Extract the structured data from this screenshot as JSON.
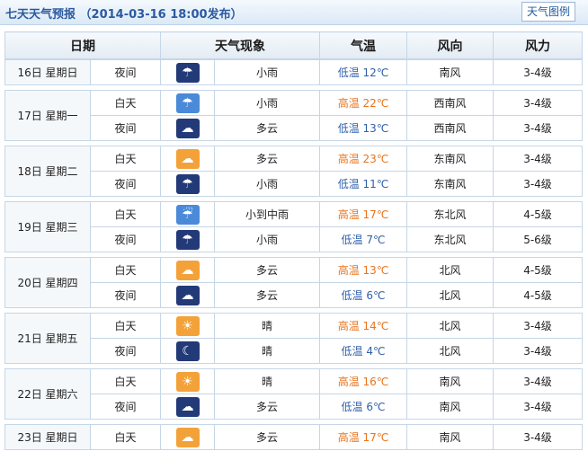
{
  "header": {
    "title": "七天天气预报 （2014-03-16 18:00发布）",
    "legend_button": "天气图例"
  },
  "table_head": [
    "日期",
    "天气现象",
    "气温",
    "风向",
    "风力"
  ],
  "days": [
    {
      "date": "16日 星期日",
      "periods": [
        {
          "period": "夜间",
          "icon": "rain-night-icon",
          "weather": "小雨",
          "temp_label": "低温",
          "temp": "12℃",
          "temp_kind": "low",
          "wind_dir": "南风",
          "wind_force": "3-4级"
        }
      ]
    },
    {
      "date": "17日 星期一",
      "periods": [
        {
          "period": "白天",
          "icon": "rain-day-icon",
          "weather": "小雨",
          "temp_label": "高温",
          "temp": "22℃",
          "temp_kind": "high",
          "wind_dir": "西南风",
          "wind_force": "3-4级"
        },
        {
          "period": "夜间",
          "icon": "cloudy-night-icon",
          "weather": "多云",
          "temp_label": "低温",
          "temp": "13℃",
          "temp_kind": "low",
          "wind_dir": "西南风",
          "wind_force": "3-4级"
        }
      ]
    },
    {
      "date": "18日 星期二",
      "periods": [
        {
          "period": "白天",
          "icon": "cloudy-day-icon",
          "weather": "多云",
          "temp_label": "高温",
          "temp": "23℃",
          "temp_kind": "high",
          "wind_dir": "东南风",
          "wind_force": "3-4级"
        },
        {
          "period": "夜间",
          "icon": "rain-night-icon",
          "weather": "小雨",
          "temp_label": "低温",
          "temp": "11℃",
          "temp_kind": "low",
          "wind_dir": "东南风",
          "wind_force": "3-4级"
        }
      ]
    },
    {
      "date": "19日 星期三",
      "periods": [
        {
          "period": "白天",
          "icon": "moderate-rain-day-icon",
          "weather": "小到中雨",
          "temp_label": "高温",
          "temp": "17℃",
          "temp_kind": "high",
          "wind_dir": "东北风",
          "wind_force": "4-5级"
        },
        {
          "period": "夜间",
          "icon": "rain-night-icon",
          "weather": "小雨",
          "temp_label": "低温",
          "temp": "7℃",
          "temp_kind": "low",
          "wind_dir": "东北风",
          "wind_force": "5-6级"
        }
      ]
    },
    {
      "date": "20日 星期四",
      "periods": [
        {
          "period": "白天",
          "icon": "cloudy-day-icon",
          "weather": "多云",
          "temp_label": "高温",
          "temp": "13℃",
          "temp_kind": "high",
          "wind_dir": "北风",
          "wind_force": "4-5级"
        },
        {
          "period": "夜间",
          "icon": "cloudy-night-icon",
          "weather": "多云",
          "temp_label": "低温",
          "temp": "6℃",
          "temp_kind": "low",
          "wind_dir": "北风",
          "wind_force": "4-5级"
        }
      ]
    },
    {
      "date": "21日 星期五",
      "periods": [
        {
          "period": "白天",
          "icon": "sunny-icon",
          "weather": "晴",
          "temp_label": "高温",
          "temp": "14℃",
          "temp_kind": "high",
          "wind_dir": "北风",
          "wind_force": "3-4级"
        },
        {
          "period": "夜间",
          "icon": "clear-night-icon",
          "weather": "晴",
          "temp_label": "低温",
          "temp": "4℃",
          "temp_kind": "low",
          "wind_dir": "北风",
          "wind_force": "3-4级"
        }
      ]
    },
    {
      "date": "22日 星期六",
      "periods": [
        {
          "period": "白天",
          "icon": "sunny-icon",
          "weather": "晴",
          "temp_label": "高温",
          "temp": "16℃",
          "temp_kind": "high",
          "wind_dir": "南风",
          "wind_force": "3-4级"
        },
        {
          "period": "夜间",
          "icon": "cloudy-night-icon",
          "weather": "多云",
          "temp_label": "低温",
          "temp": "6℃",
          "temp_kind": "low",
          "wind_dir": "南风",
          "wind_force": "3-4级"
        }
      ]
    },
    {
      "date": "23日 星期日",
      "periods": [
        {
          "period": "白天",
          "icon": "cloudy-day-icon",
          "weather": "多云",
          "temp_label": "高温",
          "temp": "17℃",
          "temp_kind": "high",
          "wind_dir": "南风",
          "wind_force": "3-4级"
        }
      ]
    }
  ],
  "colors": {
    "high": "#e8741c",
    "low": "#2f5fa8",
    "border": "#c5d6e6",
    "title": "#2c5aa0"
  }
}
